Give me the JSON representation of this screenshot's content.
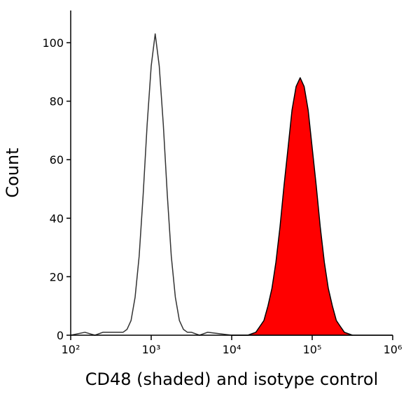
{
  "chart_data": {
    "type": "histogram-line",
    "xlabel": "CD48 (shaded) and isotype control",
    "ylabel": "Count",
    "xscale": "log",
    "xlim": [
      100,
      1000000
    ],
    "ylim": [
      0,
      111
    ],
    "xticks": [
      {
        "value": 100,
        "label": "10²"
      },
      {
        "value": 1000,
        "label": "10³"
      },
      {
        "value": 10000,
        "label": "10⁴"
      },
      {
        "value": 100000,
        "label": "10⁵"
      },
      {
        "value": 1000000,
        "label": "10⁶"
      }
    ],
    "yticks": [
      0,
      20,
      40,
      60,
      80,
      100
    ],
    "series": [
      {
        "color": "#000000",
        "fill": "#ff0000",
        "x": [
          10000,
          15849,
          19953,
          22387,
          25119,
          28184,
          31623,
          35481,
          39811,
          44668,
          50119,
          56234,
          63096,
          70795,
          79433,
          89125,
          100000,
          112202,
          125893,
          141254,
          158489,
          177828,
          199526,
          223872,
          251189,
          316228
        ],
        "values": [
          0,
          0,
          1,
          3,
          5,
          10,
          16,
          25,
          37,
          51,
          64,
          77,
          85,
          88,
          85,
          77,
          64,
          51,
          37,
          25,
          16,
          10,
          5,
          3,
          1,
          0
        ]
      },
      {
        "color": "#333333",
        "x": [
          100,
          150,
          200,
          251,
          316,
          398,
          447,
          501,
          562,
          631,
          708,
          794,
          891,
          1000,
          1122,
          1259,
          1413,
          1585,
          1778,
          1995,
          2239,
          2512,
          2818,
          3162,
          3981,
          5012,
          10000,
          1000000
        ],
        "values": [
          0,
          1,
          0,
          1,
          1,
          1,
          1,
          2,
          5,
          13,
          27,
          48,
          72,
          92,
          103,
          92,
          72,
          48,
          27,
          13,
          5,
          2,
          1,
          1,
          0,
          1,
          0,
          0
        ]
      }
    ]
  }
}
